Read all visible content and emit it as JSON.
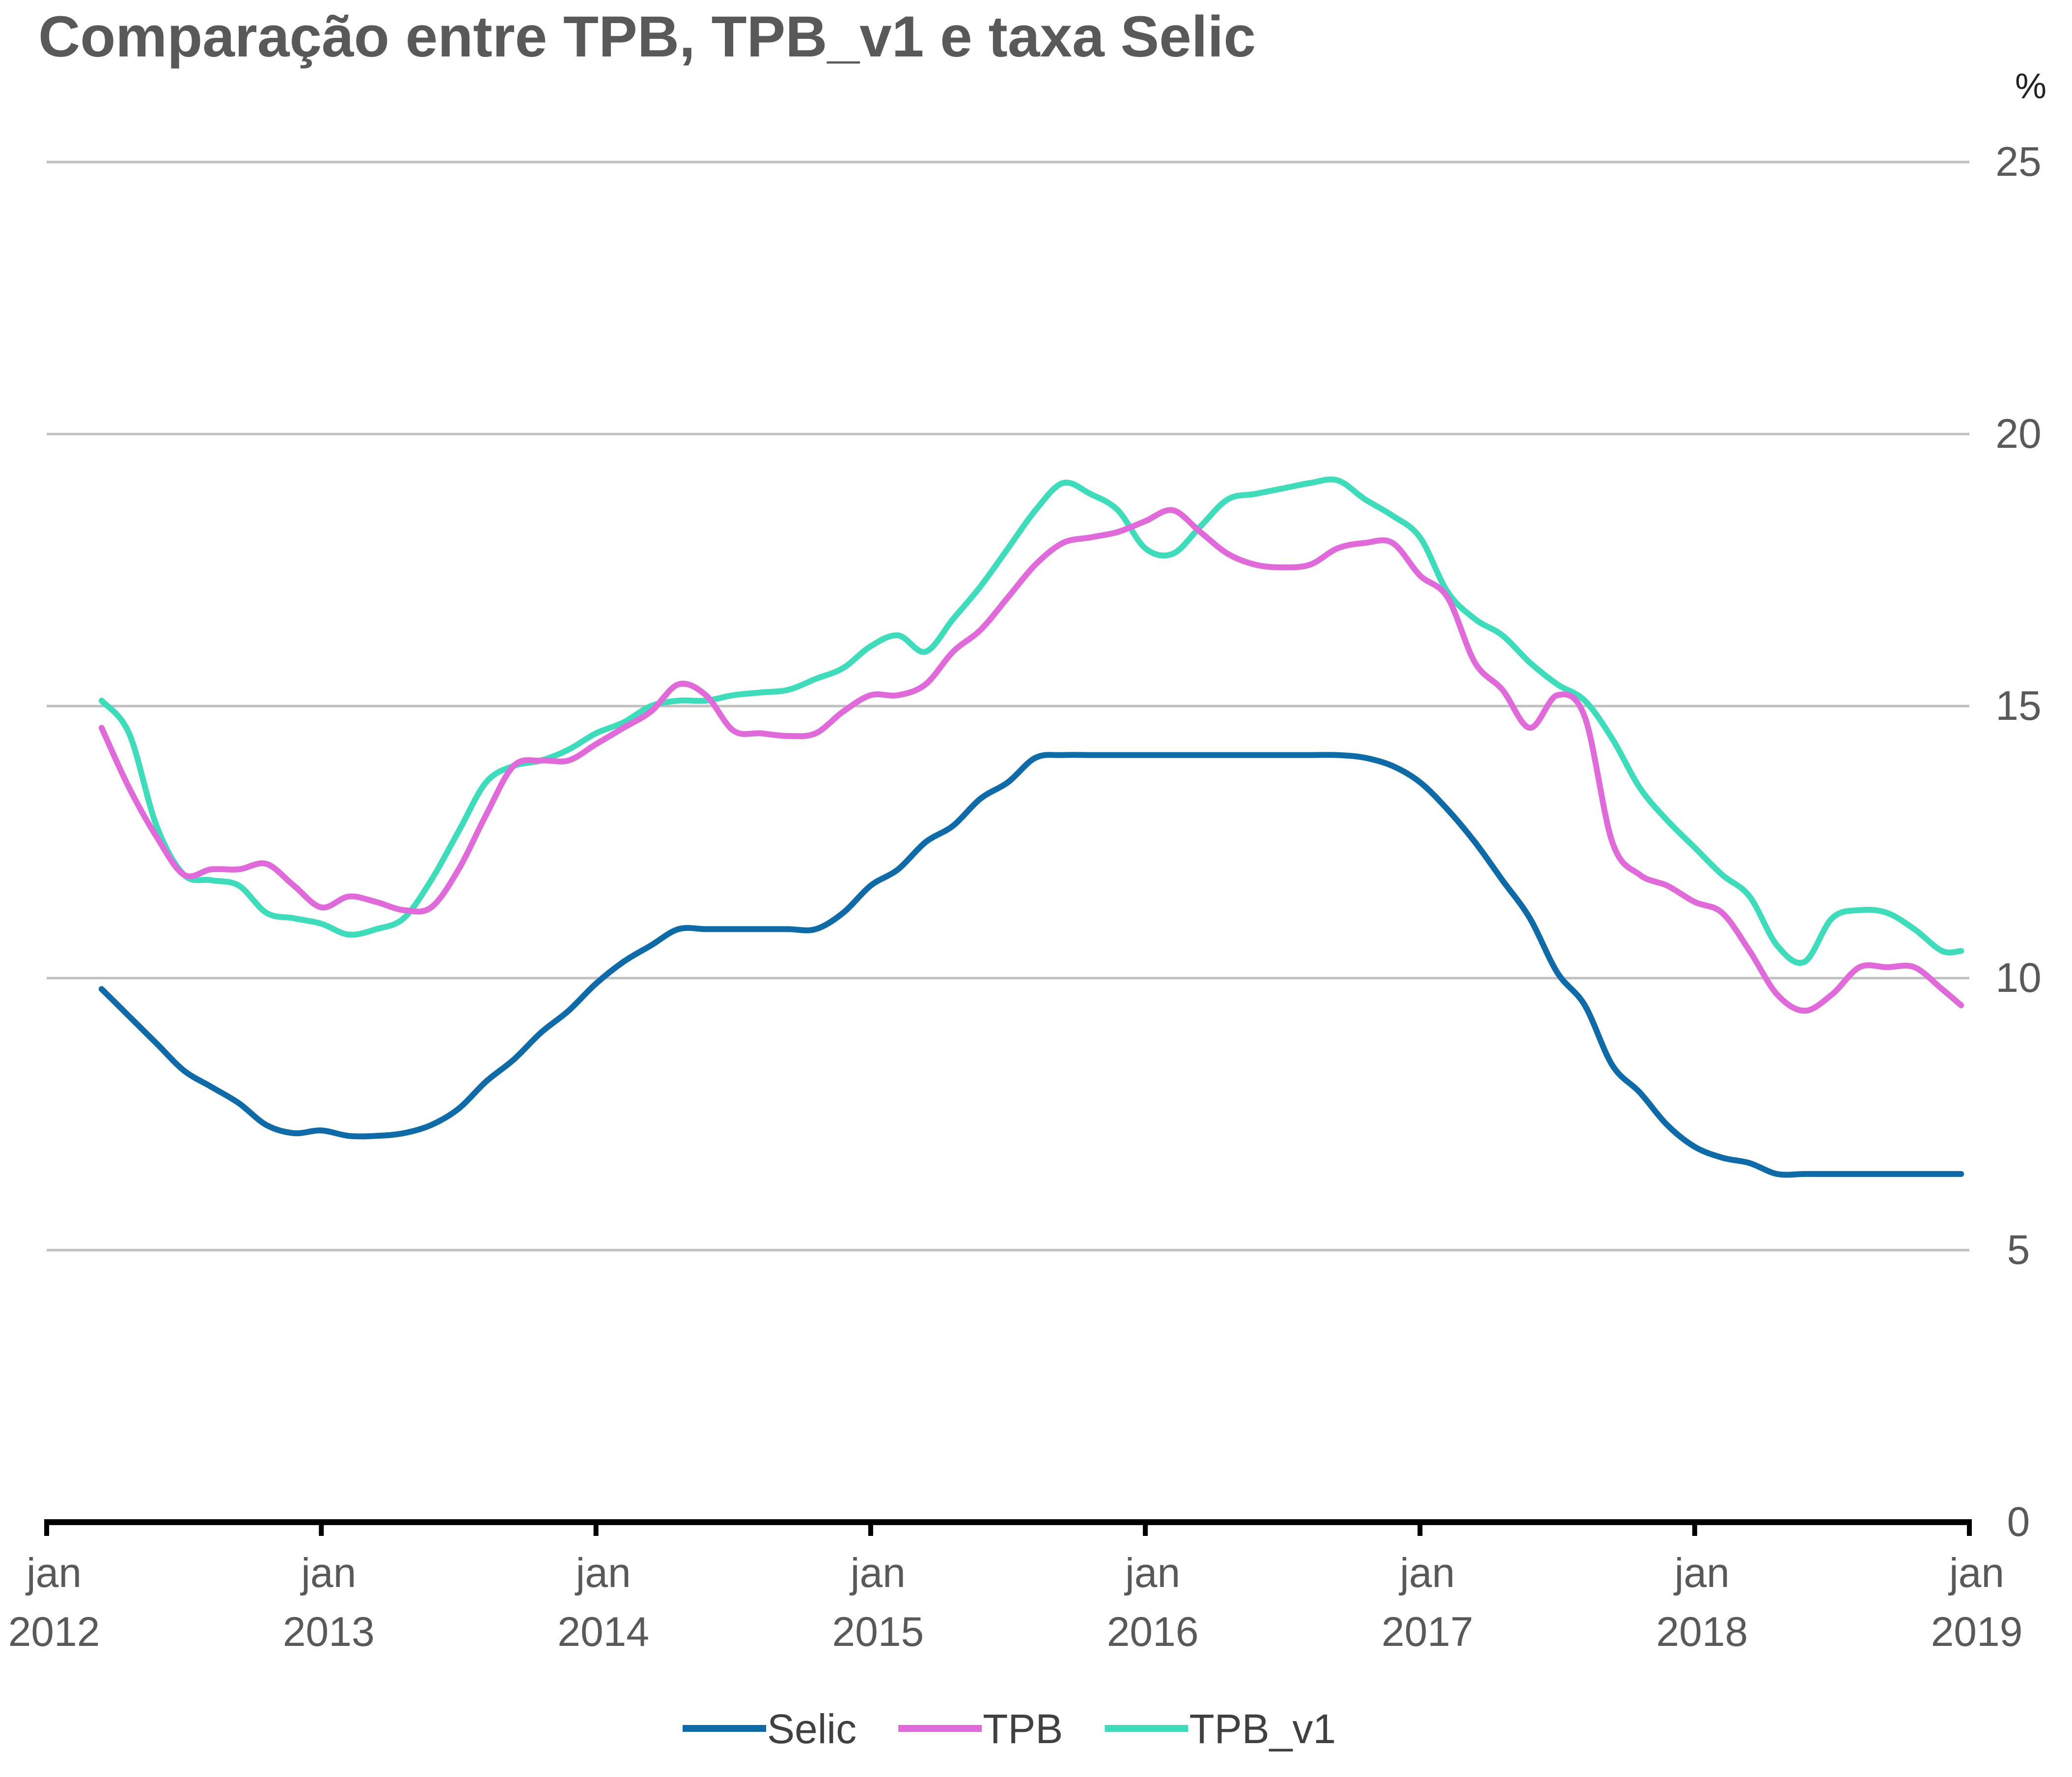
{
  "chart_data": {
    "type": "line",
    "title": "Comparação entre TPB, TPB_v1 e taxa Selic",
    "ylabel": "%",
    "xlabel": "",
    "ylim": [
      0,
      25
    ],
    "yticks": [
      0,
      5,
      10,
      15,
      20,
      25
    ],
    "xlim": [
      2012.0,
      2019.0
    ],
    "xticks": [
      {
        "value": 2012,
        "line1": "jan",
        "line2": "2012"
      },
      {
        "value": 2013,
        "line1": "jan",
        "line2": "2013"
      },
      {
        "value": 2014,
        "line1": "jan",
        "line2": "2014"
      },
      {
        "value": 2015,
        "line1": "jan",
        "line2": "2015"
      },
      {
        "value": 2016,
        "line1": "jan",
        "line2": "2016"
      },
      {
        "value": 2017,
        "line1": "jan",
        "line2": "2017"
      },
      {
        "value": 2018,
        "line1": "jan",
        "line2": "2018"
      },
      {
        "value": 2019,
        "line1": "jan",
        "line2": "2019"
      }
    ],
    "grid": "horizontal",
    "axis_side": "right",
    "legend_position": "bottom",
    "series": [
      {
        "name": "Selic",
        "color": "#0f6aa8",
        "x": [
          2012.2,
          2012.3,
          2012.4,
          2012.5,
          2012.6,
          2012.7,
          2012.8,
          2012.9,
          2013.0,
          2013.1,
          2013.2,
          2013.3,
          2013.4,
          2013.5,
          2013.6,
          2013.7,
          2013.8,
          2013.9,
          2014.0,
          2014.1,
          2014.2,
          2014.3,
          2014.4,
          2014.5,
          2014.6,
          2014.7,
          2014.8,
          2014.9,
          2015.0,
          2015.1,
          2015.2,
          2015.3,
          2015.4,
          2015.5,
          2015.6,
          2015.7,
          2015.8,
          2015.9,
          2016.0,
          2016.1,
          2016.2,
          2016.3,
          2016.4,
          2016.5,
          2016.6,
          2016.7,
          2016.8,
          2016.9,
          2017.0,
          2017.1,
          2017.2,
          2017.3,
          2017.4,
          2017.5,
          2017.6,
          2017.7,
          2017.8,
          2017.9,
          2018.0,
          2018.1,
          2018.2,
          2018.3,
          2018.4,
          2018.5,
          2018.6,
          2018.7,
          2018.8,
          2018.9,
          2018.97
        ],
        "values": [
          9.8,
          9.3,
          8.8,
          8.3,
          8.0,
          7.7,
          7.3,
          7.15,
          7.2,
          7.1,
          7.1,
          7.15,
          7.3,
          7.6,
          8.1,
          8.5,
          9.0,
          9.4,
          9.9,
          10.3,
          10.6,
          10.9,
          10.9,
          10.9,
          10.9,
          10.9,
          10.9,
          11.2,
          11.7,
          12.0,
          12.5,
          12.8,
          13.3,
          13.6,
          14.05,
          14.1,
          14.1,
          14.1,
          14.1,
          14.1,
          14.1,
          14.1,
          14.1,
          14.1,
          14.1,
          14.1,
          14.05,
          13.9,
          13.6,
          13.1,
          12.5,
          11.8,
          11.1,
          10.1,
          9.5,
          8.4,
          7.9,
          7.3,
          6.9,
          6.7,
          6.6,
          6.4,
          6.4,
          6.4,
          6.4,
          6.4,
          6.4,
          6.4,
          6.4
        ]
      },
      {
        "name": "TPB",
        "color": "#e06ad9",
        "x": [
          2012.2,
          2012.3,
          2012.4,
          2012.5,
          2012.6,
          2012.7,
          2012.8,
          2012.9,
          2013.0,
          2013.1,
          2013.2,
          2013.3,
          2013.4,
          2013.5,
          2013.6,
          2013.7,
          2013.8,
          2013.9,
          2014.0,
          2014.1,
          2014.2,
          2014.3,
          2014.4,
          2014.5,
          2014.6,
          2014.7,
          2014.8,
          2014.9,
          2015.0,
          2015.1,
          2015.2,
          2015.3,
          2015.4,
          2015.5,
          2015.6,
          2015.7,
          2015.8,
          2015.9,
          2016.0,
          2016.1,
          2016.2,
          2016.3,
          2016.4,
          2016.5,
          2016.6,
          2016.7,
          2016.8,
          2016.9,
          2017.0,
          2017.1,
          2017.2,
          2017.3,
          2017.4,
          2017.5,
          2017.6,
          2017.7,
          2017.8,
          2017.9,
          2018.0,
          2018.1,
          2018.2,
          2018.3,
          2018.4,
          2018.5,
          2018.6,
          2018.7,
          2018.8,
          2018.9,
          2018.97
        ],
        "values": [
          14.6,
          13.5,
          12.6,
          11.9,
          12.0,
          12.0,
          12.1,
          11.7,
          11.3,
          11.5,
          11.4,
          11.25,
          11.3,
          12.0,
          13.0,
          13.9,
          14.0,
          14.0,
          14.3,
          14.6,
          14.9,
          15.4,
          15.2,
          14.55,
          14.5,
          14.45,
          14.5,
          14.9,
          15.2,
          15.2,
          15.4,
          16.0,
          16.4,
          17.0,
          17.6,
          18.0,
          18.1,
          18.2,
          18.4,
          18.6,
          18.2,
          17.8,
          17.6,
          17.55,
          17.6,
          17.9,
          18.0,
          18.0,
          17.4,
          17.0,
          15.8,
          15.3,
          14.6,
          15.2,
          14.8,
          12.5,
          11.9,
          11.7,
          11.4,
          11.2,
          10.5,
          9.7,
          9.4,
          9.7,
          10.2,
          10.2,
          10.2,
          9.8,
          9.5
        ]
      },
      {
        "name": "TPB_v1",
        "color": "#3fdcbc",
        "x": [
          2012.2,
          2012.3,
          2012.4,
          2012.5,
          2012.6,
          2012.7,
          2012.8,
          2012.9,
          2013.0,
          2013.1,
          2013.2,
          2013.3,
          2013.4,
          2013.5,
          2013.6,
          2013.7,
          2013.8,
          2013.9,
          2014.0,
          2014.1,
          2014.2,
          2014.3,
          2014.4,
          2014.5,
          2014.6,
          2014.7,
          2014.8,
          2014.9,
          2015.0,
          2015.1,
          2015.2,
          2015.3,
          2015.4,
          2015.5,
          2015.6,
          2015.7,
          2015.8,
          2015.9,
          2016.0,
          2016.1,
          2016.2,
          2016.3,
          2016.4,
          2016.5,
          2016.6,
          2016.7,
          2016.8,
          2016.9,
          2017.0,
          2017.1,
          2017.2,
          2017.3,
          2017.4,
          2017.5,
          2017.6,
          2017.7,
          2017.8,
          2017.9,
          2018.0,
          2018.1,
          2018.2,
          2018.3,
          2018.4,
          2018.5,
          2018.6,
          2018.7,
          2018.8,
          2018.9,
          2018.97
        ],
        "values": [
          15.1,
          14.5,
          12.8,
          11.9,
          11.8,
          11.7,
          11.2,
          11.1,
          11.0,
          10.8,
          10.9,
          11.1,
          11.8,
          12.7,
          13.6,
          13.9,
          14.0,
          14.2,
          14.5,
          14.7,
          15.0,
          15.1,
          15.1,
          15.2,
          15.25,
          15.3,
          15.5,
          15.7,
          16.1,
          16.3,
          16.0,
          16.6,
          17.2,
          17.9,
          18.6,
          19.1,
          18.9,
          18.6,
          17.9,
          17.8,
          18.3,
          18.8,
          18.9,
          19.0,
          19.1,
          19.15,
          18.8,
          18.5,
          18.1,
          17.1,
          16.6,
          16.3,
          15.8,
          15.4,
          15.1,
          14.4,
          13.5,
          12.9,
          12.4,
          11.9,
          11.5,
          10.6,
          10.3,
          11.1,
          11.25,
          11.2,
          10.9,
          10.5,
          10.5
        ]
      }
    ]
  }
}
